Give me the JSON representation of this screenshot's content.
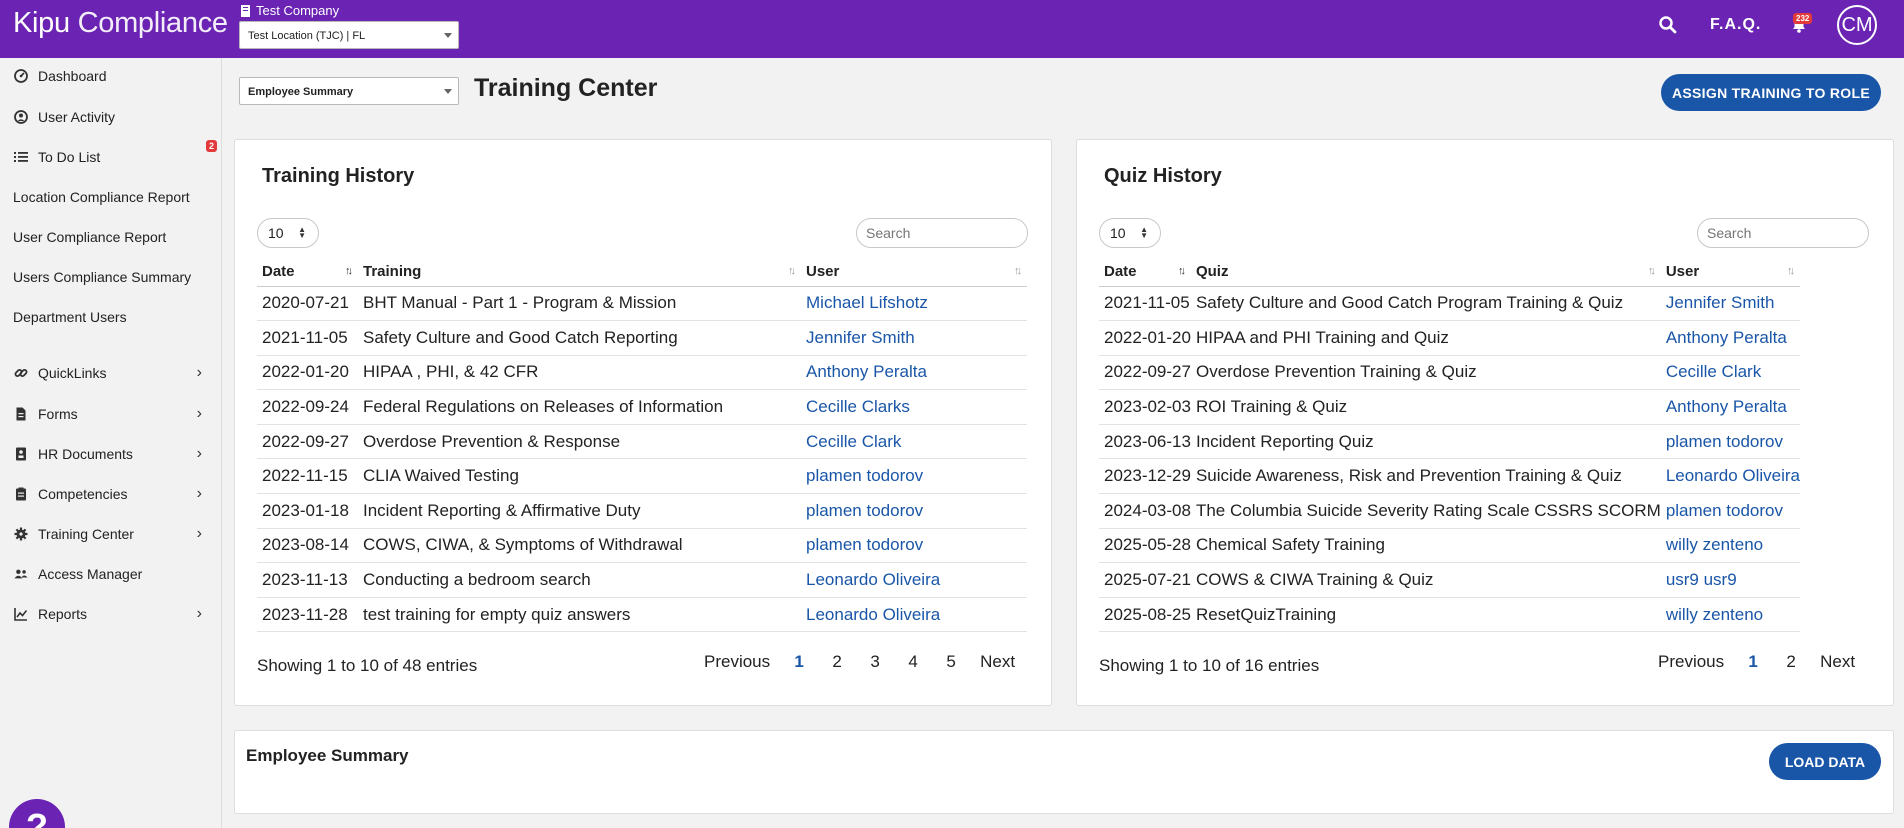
{
  "app": {
    "logo_part1": "Kipu",
    "logo_part2": "Compliance",
    "company": "Test Company",
    "location": "Test Location (TJC) | FL",
    "faq_label": "F.A.Q.",
    "notification_count": "232",
    "avatar_initials": "CM",
    "brand_color": "#6a23b3",
    "accent_color": "#1a56a8"
  },
  "sidebar": {
    "items": [
      {
        "label": "Dashboard",
        "icon": "dashboard-icon"
      },
      {
        "label": "User Activity",
        "icon": "user-circle-icon"
      },
      {
        "label": "To Do List",
        "icon": "list-icon",
        "badge": "2"
      },
      {
        "label": "Location Compliance Report"
      },
      {
        "label": "User Compliance Report"
      },
      {
        "label": "Users Compliance Summary"
      },
      {
        "label": "Department Users"
      },
      {
        "label": "QuickLinks",
        "icon": "link-icon"
      },
      {
        "label": "Forms",
        "icon": "document-icon"
      },
      {
        "label": "HR Documents",
        "icon": "id-card-icon"
      },
      {
        "label": "Competencies",
        "icon": "clipboard-icon"
      },
      {
        "label": "Training Center",
        "icon": "gear-icon"
      },
      {
        "label": "Access Manager",
        "icon": "users-icon"
      },
      {
        "label": "Reports",
        "icon": "chart-icon"
      }
    ],
    "help_label": "?"
  },
  "page": {
    "view_select": "Employee Summary",
    "title": "Training Center",
    "assign_button": "ASSIGN TRAINING TO ROLE"
  },
  "training_history": {
    "title": "Training History",
    "page_length": "10",
    "search_placeholder": "Search",
    "columns": [
      "Date",
      "Training",
      "User"
    ],
    "rows": [
      [
        "2020-07-21",
        "BHT Manual - Part 1 - Program & Mission",
        "Michael Lifshotz"
      ],
      [
        "2021-11-05",
        "Safety Culture and Good Catch Reporting",
        "Jennifer Smith"
      ],
      [
        "2022-01-20",
        "HIPAA , PHI, & 42 CFR",
        "Anthony Peralta"
      ],
      [
        "2022-09-24",
        "Federal Regulations on Releases of Information",
        "Cecille Clarks"
      ],
      [
        "2022-09-27",
        "Overdose Prevention & Response",
        "Cecille Clark"
      ],
      [
        "2022-11-15",
        "CLIA Waived Testing",
        "plamen todorov"
      ],
      [
        "2023-01-18",
        "Incident Reporting & Affirmative Duty",
        "plamen todorov"
      ],
      [
        "2023-08-14",
        "COWS, CIWA, & Symptoms of Withdrawal",
        "plamen todorov"
      ],
      [
        "2023-11-13",
        "Conducting a bedroom search",
        "Leonardo Oliveira"
      ],
      [
        "2023-11-28",
        "test training for empty quiz answers",
        "Leonardo Oliveira"
      ]
    ],
    "info": "Showing 1 to 10 of 48 entries",
    "pager": {
      "previous": "Previous",
      "pages": [
        "1",
        "2",
        "3",
        "4",
        "5"
      ],
      "next": "Next"
    }
  },
  "quiz_history": {
    "title": "Quiz History",
    "page_length": "10",
    "search_placeholder": "Search",
    "columns": [
      "Date",
      "Quiz",
      "User"
    ],
    "rows": [
      [
        "2021-11-05",
        "Safety Culture and Good Catch Program Training & Quiz",
        "Jennifer Smith"
      ],
      [
        "2022-01-20",
        "HIPAA and PHI Training and Quiz",
        "Anthony Peralta"
      ],
      [
        "2022-09-27",
        "Overdose Prevention Training & Quiz",
        "Cecille Clark"
      ],
      [
        "2023-02-03",
        "ROI Training & Quiz",
        "Anthony Peralta"
      ],
      [
        "2023-06-13",
        "Incident Reporting Quiz",
        "plamen todorov"
      ],
      [
        "2023-12-29",
        "Suicide Awareness, Risk and Prevention Training & Quiz",
        "Leonardo Oliveira"
      ],
      [
        "2024-03-08",
        "The Columbia Suicide Severity Rating Scale CSSRS SCORM",
        "plamen todorov"
      ],
      [
        "2025-05-28",
        "Chemical Safety Training",
        "willy zenteno"
      ],
      [
        "2025-07-21",
        "COWS & CIWA Training & Quiz",
        "usr9 usr9"
      ],
      [
        "2025-08-25",
        "ResetQuizTraining",
        "willy zenteno"
      ]
    ],
    "info": "Showing 1 to 10 of 16 entries",
    "pager": {
      "previous": "Previous",
      "pages": [
        "1",
        "2"
      ],
      "next": "Next"
    }
  },
  "employee_summary": {
    "title": "Employee Summary",
    "load_button": "LOAD DATA"
  }
}
